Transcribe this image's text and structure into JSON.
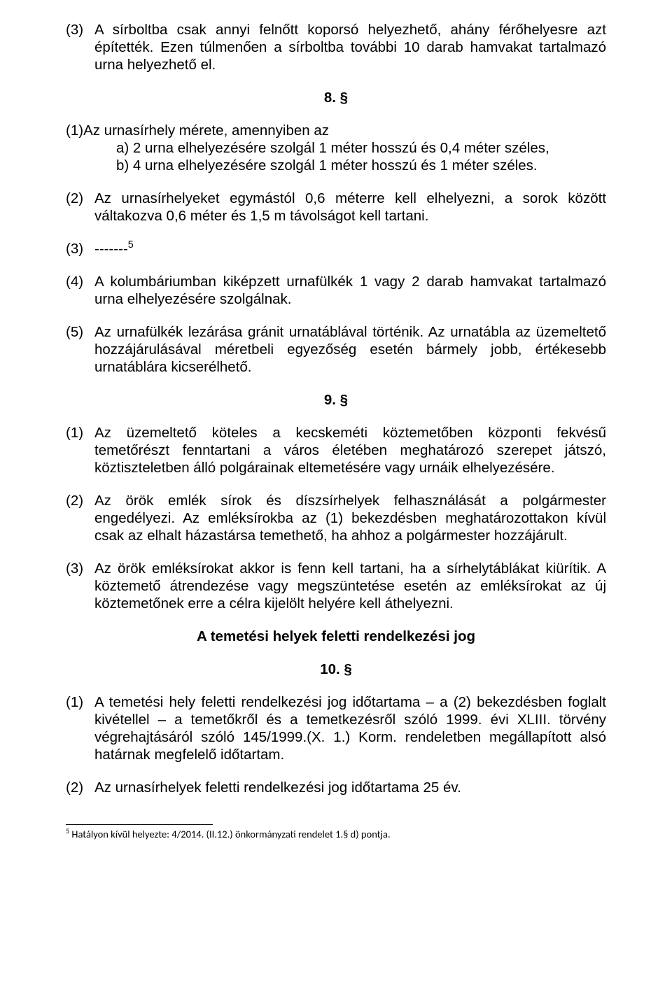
{
  "typography": {
    "body_font": "Arial",
    "body_fontsize_pt": 15,
    "section_bold": true,
    "footnote_font": "Calibri",
    "footnote_fontsize_pt": 11,
    "text_color": "#000000",
    "background_color": "#ffffff"
  },
  "s7": {
    "p3_num": "(3)",
    "p3": "A sírboltba csak annyi felnőtt koporsó helyezhető, ahány férőhelyesre azt építették. Ezen túlmenően a sírboltba további 10 darab hamvakat tartalmazó urna helyezhető el."
  },
  "s8": {
    "num": "8. §",
    "p1_num": "(1)",
    "p1_intro": "Az urnasírhely mérete, amennyiben az",
    "p1_a": "a) 2 urna elhelyezésére szolgál 1 méter hosszú és 0,4 méter széles,",
    "p1_b": "b) 4 urna elhelyezésére szolgál 1 méter hosszú és 1 méter széles.",
    "p2_num": "(2)",
    "p2": "Az urnasírhelyeket egymástól 0,6 méterre kell elhelyezni, a sorok között váltakozva 0,6 méter és 1,5 m távolságot kell tartani.",
    "p3_num": "(3)",
    "p3": "-------",
    "p3_sup": "5",
    "p4_num": "(4)",
    "p4": "A kolumbáriumban kiképzett urnafülkék 1 vagy 2 darab hamvakat tartalmazó urna elhelyezésére szolgálnak.",
    "p5_num": "(5)",
    "p5": "Az urnafülkék lezárása gránit urnatáblával történik. Az urnatábla az üzemeltető hozzájárulásával méretbeli egyezőség esetén bármely jobb, értékesebb urnatáblára kicserélhető."
  },
  "s9": {
    "num": "9. §",
    "p1_num": "(1)",
    "p1": "Az üzemeltető köteles a kecskeméti köztemetőben központi fekvésű temetőrészt fenntartani a város életében meghatározó szerepet játszó, köztiszteletben álló polgárainak eltemetésére vagy urnáik elhelyezésére.",
    "p2_num": "(2)",
    "p2": "Az örök emlék sírok és díszsírhelyek felhasználását a polgármester engedélyezi. Az emléksírokba az (1) bekezdésben meghatározottakon kívül csak az elhalt házastársa temethető, ha ahhoz a polgármester hozzájárult.",
    "p3_num": "(3)",
    "p3": "Az örök emléksírokat akkor is fenn kell tartani, ha a sírhelytáblákat kiürítik. A köztemető átrendezése vagy megszüntetése esetén az emléksírokat az új köztemetőnek erre a célra kijelölt helyére kell áthelyezni."
  },
  "s10": {
    "title": "A temetési helyek feletti rendelkezési jog",
    "num": "10. §",
    "p1_num": "(1)",
    "p1": "A temetési hely feletti rendelkezési jog időtartama – a (2) bekezdésben foglalt kivétellel – a temetőkről és a temetkezésről szóló 1999. évi XLIII. törvény végrehajtásáról szóló 145/1999.(X. 1.) Korm. rendeletben megállapított alsó határnak megfelelő időtartam.",
    "p2_num": "(2)",
    "p2": "Az urnasírhelyek feletti rendelkezési jog időtartama 25 év."
  },
  "footnote": {
    "ref": "5",
    "text": " Hatályon kívül helyezte: 4/2014. (II.12.) önkormányzati rendelet 1.§ d) pontja."
  }
}
